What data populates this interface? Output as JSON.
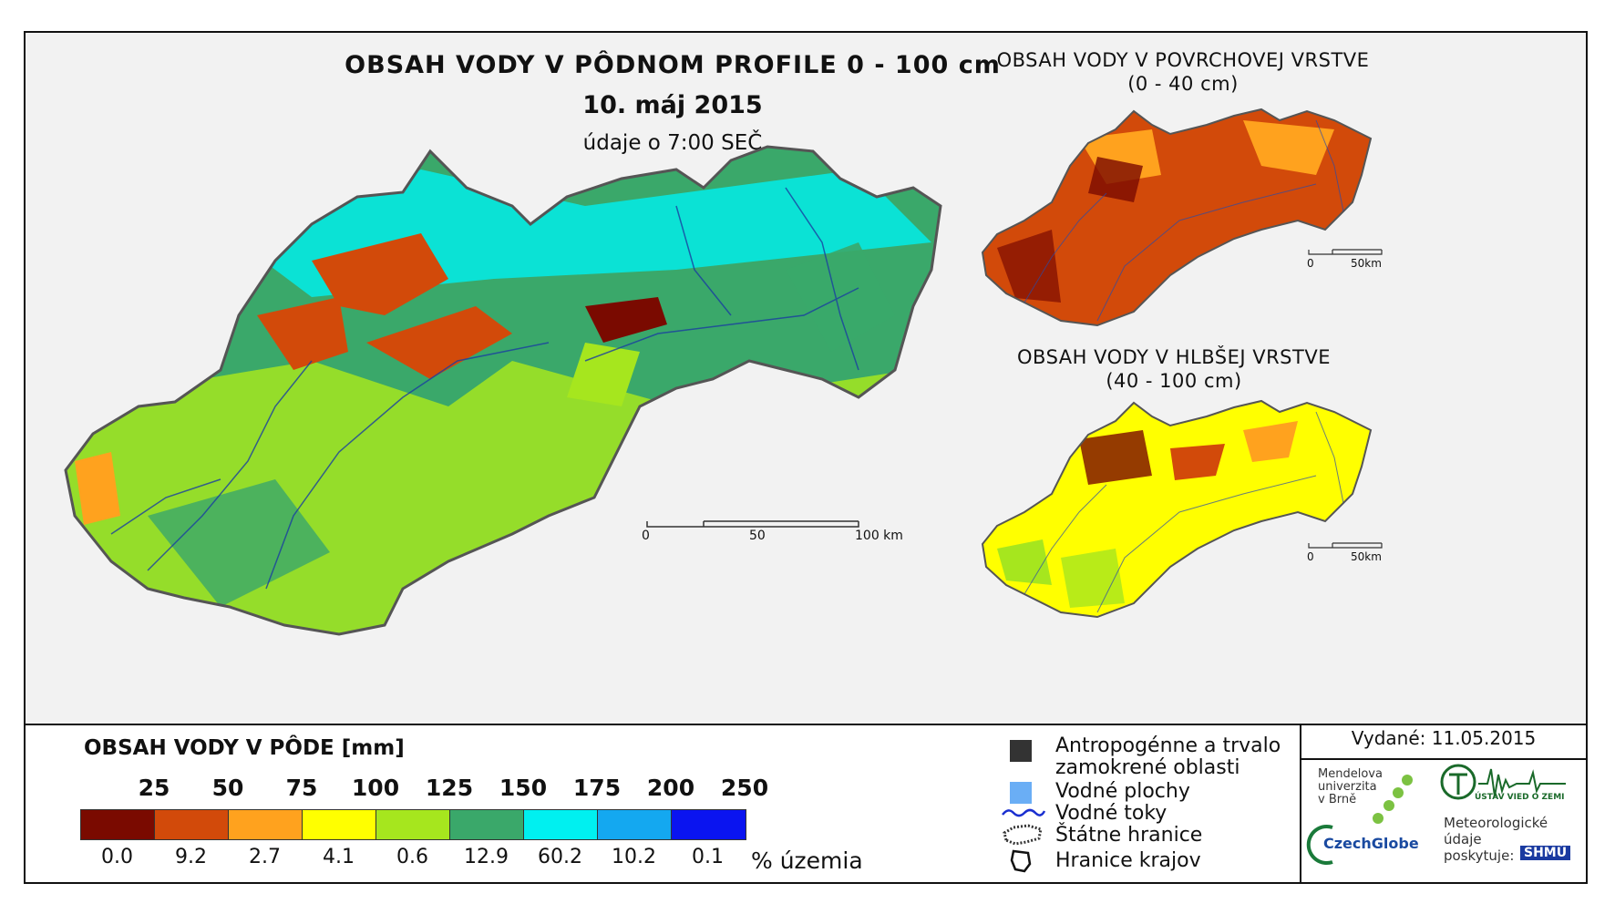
{
  "titles": {
    "main": "OBSAH VODY V PÔDNOM PROFILE 0 - 100 cm",
    "date": "10. máj 2015",
    "time": "údaje o 7:00 SEČ",
    "surface_title": "OBSAH VODY V POVRCHOVEJ VRSTVE",
    "surface_range": "(0 - 40 cm)",
    "deep_title": "OBSAH VODY V HLBŠEJ VRSTVE",
    "deep_range": "(40 - 100 cm)"
  },
  "scale_main": {
    "labels": [
      "0",
      "50",
      "100 km"
    ]
  },
  "scale_small": {
    "labels": [
      "0",
      "50km"
    ]
  },
  "legend": {
    "title": "OBSAH VODY V PÔDE [mm]",
    "thresholds": [
      "25",
      "50",
      "75",
      "100",
      "125",
      "150",
      "175",
      "200",
      "250"
    ],
    "classes": [
      {
        "color": "#7a0a00",
        "percent": "0.0"
      },
      {
        "color": "#d24a0a",
        "percent": "9.2"
      },
      {
        "color": "#ffa21e",
        "percent": "2.7"
      },
      {
        "color": "#ffff00",
        "percent": "4.1"
      },
      {
        "color": "#a6e61e",
        "percent": "0.6"
      },
      {
        "color": "#3aa86a",
        "percent": "12.9"
      },
      {
        "color": "#00f0f0",
        "percent": "60.2"
      },
      {
        "color": "#14a8f0",
        "percent": "10.2"
      },
      {
        "color": "#0a14f0",
        "percent": "0.1"
      }
    ],
    "unit": "% územia"
  },
  "symbols": {
    "anthro_line1": "Antropogénne a trvalo",
    "anthro_line2": "zamokrené oblasti",
    "water_bodies": "Vodné plochy",
    "streams": "Vodné toky",
    "state_border": "Štátne hranice",
    "region_border": "Hranice krajov"
  },
  "issued": "Vydané: 11.05.2015",
  "logos": {
    "mendel": [
      "Mendelova",
      "univerzita",
      "v Brně"
    ],
    "czechglobe": "CzechGlobe",
    "institute": "ÚSTAV VIED O ZEMI",
    "meteo": [
      "Meteorologické",
      "údaje",
      "poskytuje:"
    ],
    "shmu": "SHMÚ"
  }
}
